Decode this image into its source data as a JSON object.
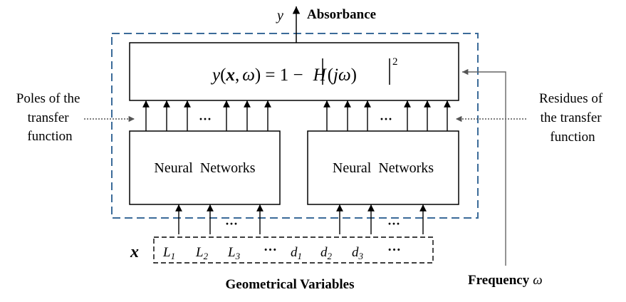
{
  "output": {
    "symbol": "y",
    "label": "Absorbance"
  },
  "formula": {
    "y": "y",
    "open_paren": "(",
    "x": "x",
    "comma": ",",
    "omega": "ω",
    "close_eq": ") = 1 −",
    "H": "H",
    "arg_open": "(",
    "j_omega": "jω",
    "arg_close": ")",
    "power": "2"
  },
  "left_note": [
    "Poles of the",
    "transfer",
    "function"
  ],
  "right_note": [
    "Residues of",
    "the transfer",
    "function"
  ],
  "networks": [
    {
      "label": "Neural  Networks"
    },
    {
      "label": "Neural  Networks"
    }
  ],
  "ellipsis": "···",
  "inputs": {
    "x_symbol": "x",
    "vars": [
      {
        "base": "L",
        "sub": "1"
      },
      {
        "base": "L",
        "sub": "2"
      },
      {
        "base": "L",
        "sub": "3"
      },
      {
        "base": "···",
        "sub": ""
      },
      {
        "base": "d",
        "sub": "1"
      },
      {
        "base": "d",
        "sub": "2"
      },
      {
        "base": "d",
        "sub": "3"
      },
      {
        "base": "···",
        "sub": ""
      }
    ],
    "caption": "Geometrical Variables"
  },
  "frequency": {
    "label": "Frequency",
    "symbol": "ω"
  }
}
